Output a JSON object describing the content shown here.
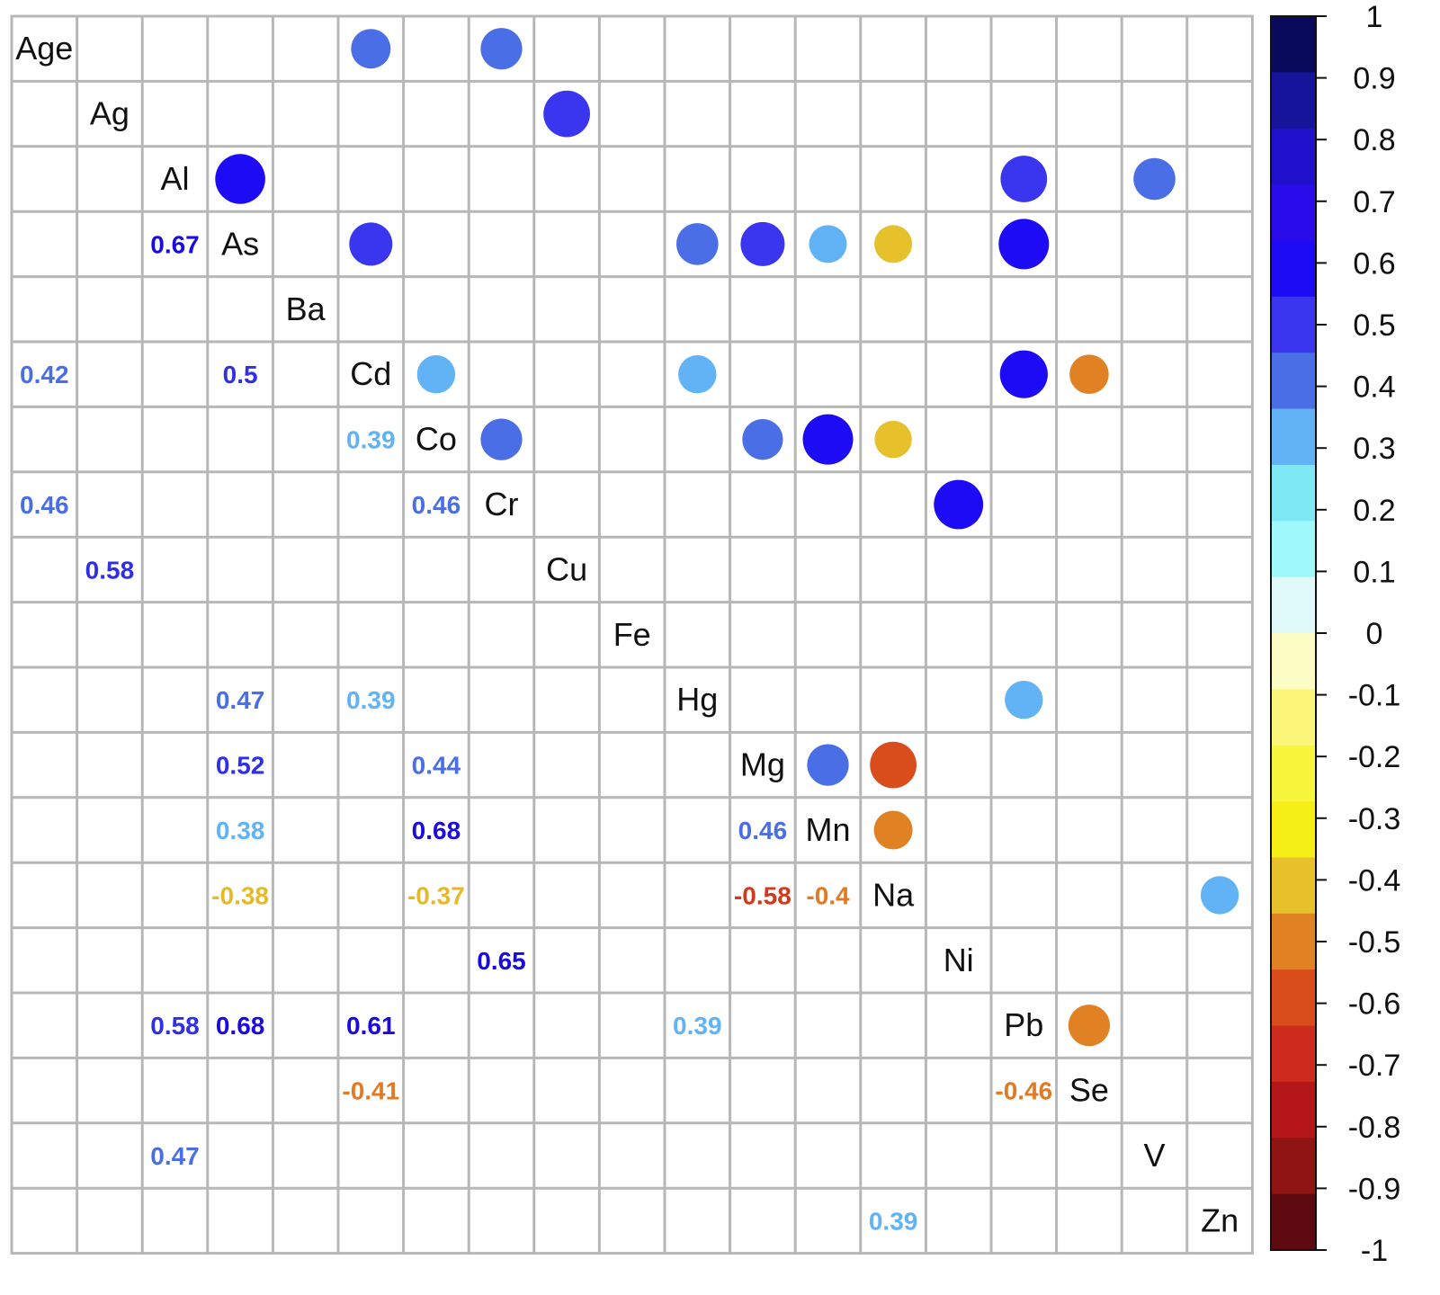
{
  "chart_data": {
    "type": "heatmap",
    "variables": [
      "Age",
      "Ag",
      "Al",
      "As",
      "Ba",
      "Cd",
      "Co",
      "Cr",
      "Cu",
      "Fe",
      "Hg",
      "Mg",
      "Mn",
      "Na",
      "Ni",
      "Pb",
      "Se",
      "V",
      "Zn"
    ],
    "correlations": [
      {
        "row": "Al",
        "col": "As",
        "value": 0.67
      },
      {
        "row": "Age",
        "col": "Cd",
        "value": 0.42
      },
      {
        "row": "As",
        "col": "Cd",
        "value": 0.5
      },
      {
        "row": "Cd",
        "col": "Co",
        "value": 0.39
      },
      {
        "row": "Age",
        "col": "Cr",
        "value": 0.46
      },
      {
        "row": "Co",
        "col": "Cr",
        "value": 0.46
      },
      {
        "row": "Ag",
        "col": "Cu",
        "value": 0.58
      },
      {
        "row": "As",
        "col": "Hg",
        "value": 0.47
      },
      {
        "row": "Cd",
        "col": "Hg",
        "value": 0.39
      },
      {
        "row": "As",
        "col": "Mg",
        "value": 0.52
      },
      {
        "row": "Co",
        "col": "Mg",
        "value": 0.44
      },
      {
        "row": "As",
        "col": "Mn",
        "value": 0.38
      },
      {
        "row": "Co",
        "col": "Mn",
        "value": 0.68
      },
      {
        "row": "Mg",
        "col": "Mn",
        "value": 0.46
      },
      {
        "row": "As",
        "col": "Na",
        "value": -0.38
      },
      {
        "row": "Co",
        "col": "Na",
        "value": -0.37
      },
      {
        "row": "Mg",
        "col": "Na",
        "value": -0.58
      },
      {
        "row": "Mn",
        "col": "Na",
        "value": -0.4
      },
      {
        "row": "Cr",
        "col": "Ni",
        "value": 0.65
      },
      {
        "row": "Al",
        "col": "Pb",
        "value": 0.58
      },
      {
        "row": "As",
        "col": "Pb",
        "value": 0.68
      },
      {
        "row": "Cd",
        "col": "Pb",
        "value": 0.61
      },
      {
        "row": "Hg",
        "col": "Pb",
        "value": 0.39
      },
      {
        "row": "Cd",
        "col": "Se",
        "value": -0.41
      },
      {
        "row": "Pb",
        "col": "Se",
        "value": -0.46
      },
      {
        "row": "Al",
        "col": "V",
        "value": 0.47
      },
      {
        "row": "Na",
        "col": "Zn",
        "value": 0.39
      }
    ],
    "value_range": [
      -1,
      1
    ],
    "colorbar_ticks": [
      "1",
      "0.9",
      "0.8",
      "0.7",
      "0.6",
      "0.5",
      "0.4",
      "0.3",
      "0.2",
      "0.1",
      "0",
      "-0.1",
      "-0.2",
      "-0.3",
      "-0.4",
      "-0.5",
      "-0.6",
      "-0.7",
      "-0.8",
      "-0.9",
      "-1"
    ],
    "upper_triangle": "circles",
    "lower_triangle": "numbers",
    "grid": true,
    "legend": "right",
    "colorbar_colors": [
      "#0a0a5c",
      "#16149a",
      "#1f10cc",
      "#2a0bea",
      "#1e0bf5",
      "#3a35ee",
      "#4a6ee6",
      "#62b3f6",
      "#7ee8f4",
      "#9ff8fa",
      "#e0fafa",
      "#fcfcc5",
      "#fbf67a",
      "#f7f63c",
      "#f5ef15",
      "#e6c12b",
      "#e08124",
      "#d94c1c",
      "#cc2b1e",
      "#b5161a",
      "#8f1414",
      "#5e0a10"
    ],
    "circle_colors": {
      "0.3-0.4": "#62b3f6",
      "0.4-0.5": "#4a6ee6",
      "0.5-0.6": "#3a35ee",
      "0.6-0.7": "#1e0bf5",
      "-0.3--0.4": "#e6c12b",
      "-0.4--0.5": "#e08124",
      "-0.5--0.6": "#d94c1c"
    },
    "number_colors": {
      "0.3-0.4": "#62b3f6",
      "0.4-0.5": "#4a6ee6",
      "0.5-0.6": "#2f2fe6",
      "0.6-0.7": "#1a0ae0",
      "-0.3--0.4": "#e6b92b",
      "-0.4--0.5": "#e07a24",
      "-0.5--0.6": "#d2381c"
    }
  }
}
